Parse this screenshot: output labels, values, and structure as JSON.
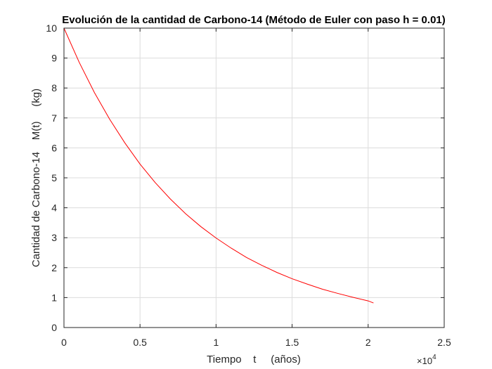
{
  "chart_data": {
    "type": "line",
    "title": "Evolución de la cantidad de Carbono-14 (Método de Euler con paso h = 0.01)",
    "xlabel": "Tiempo    t     (años)",
    "ylabel": "Cantidad de Carbono-14    M(t)     (kg)",
    "xlim": [
      0,
      25000
    ],
    "ylim": [
      0,
      10
    ],
    "x_ticks": [
      0,
      5000,
      10000,
      15000,
      20000,
      25000
    ],
    "x_tick_labels": [
      "0",
      "0.5",
      "1",
      "1.5",
      "2",
      "2.5"
    ],
    "x_exponent_label": "×10",
    "x_exponent_power": "4",
    "y_ticks": [
      0,
      1,
      2,
      3,
      4,
      5,
      6,
      7,
      8,
      9,
      10
    ],
    "y_tick_labels": [
      "0",
      "1",
      "2",
      "3",
      "4",
      "5",
      "6",
      "7",
      "8",
      "9",
      "10"
    ],
    "grid": true,
    "series": [
      {
        "color": "#ff0000",
        "x": [
          0,
          1000,
          2000,
          3000,
          4000,
          5000,
          6000,
          7000,
          8000,
          9000,
          10000,
          11000,
          12000,
          13000,
          14000,
          15000,
          16000,
          17000,
          18000,
          19000,
          20000,
          20350
        ],
        "y": [
          10,
          8.86,
          7.85,
          6.96,
          6.17,
          5.46,
          4.84,
          4.29,
          3.8,
          3.37,
          2.99,
          2.65,
          2.34,
          2.08,
          1.84,
          1.63,
          1.45,
          1.28,
          1.14,
          1.01,
          0.89,
          0.82
        ]
      }
    ]
  }
}
